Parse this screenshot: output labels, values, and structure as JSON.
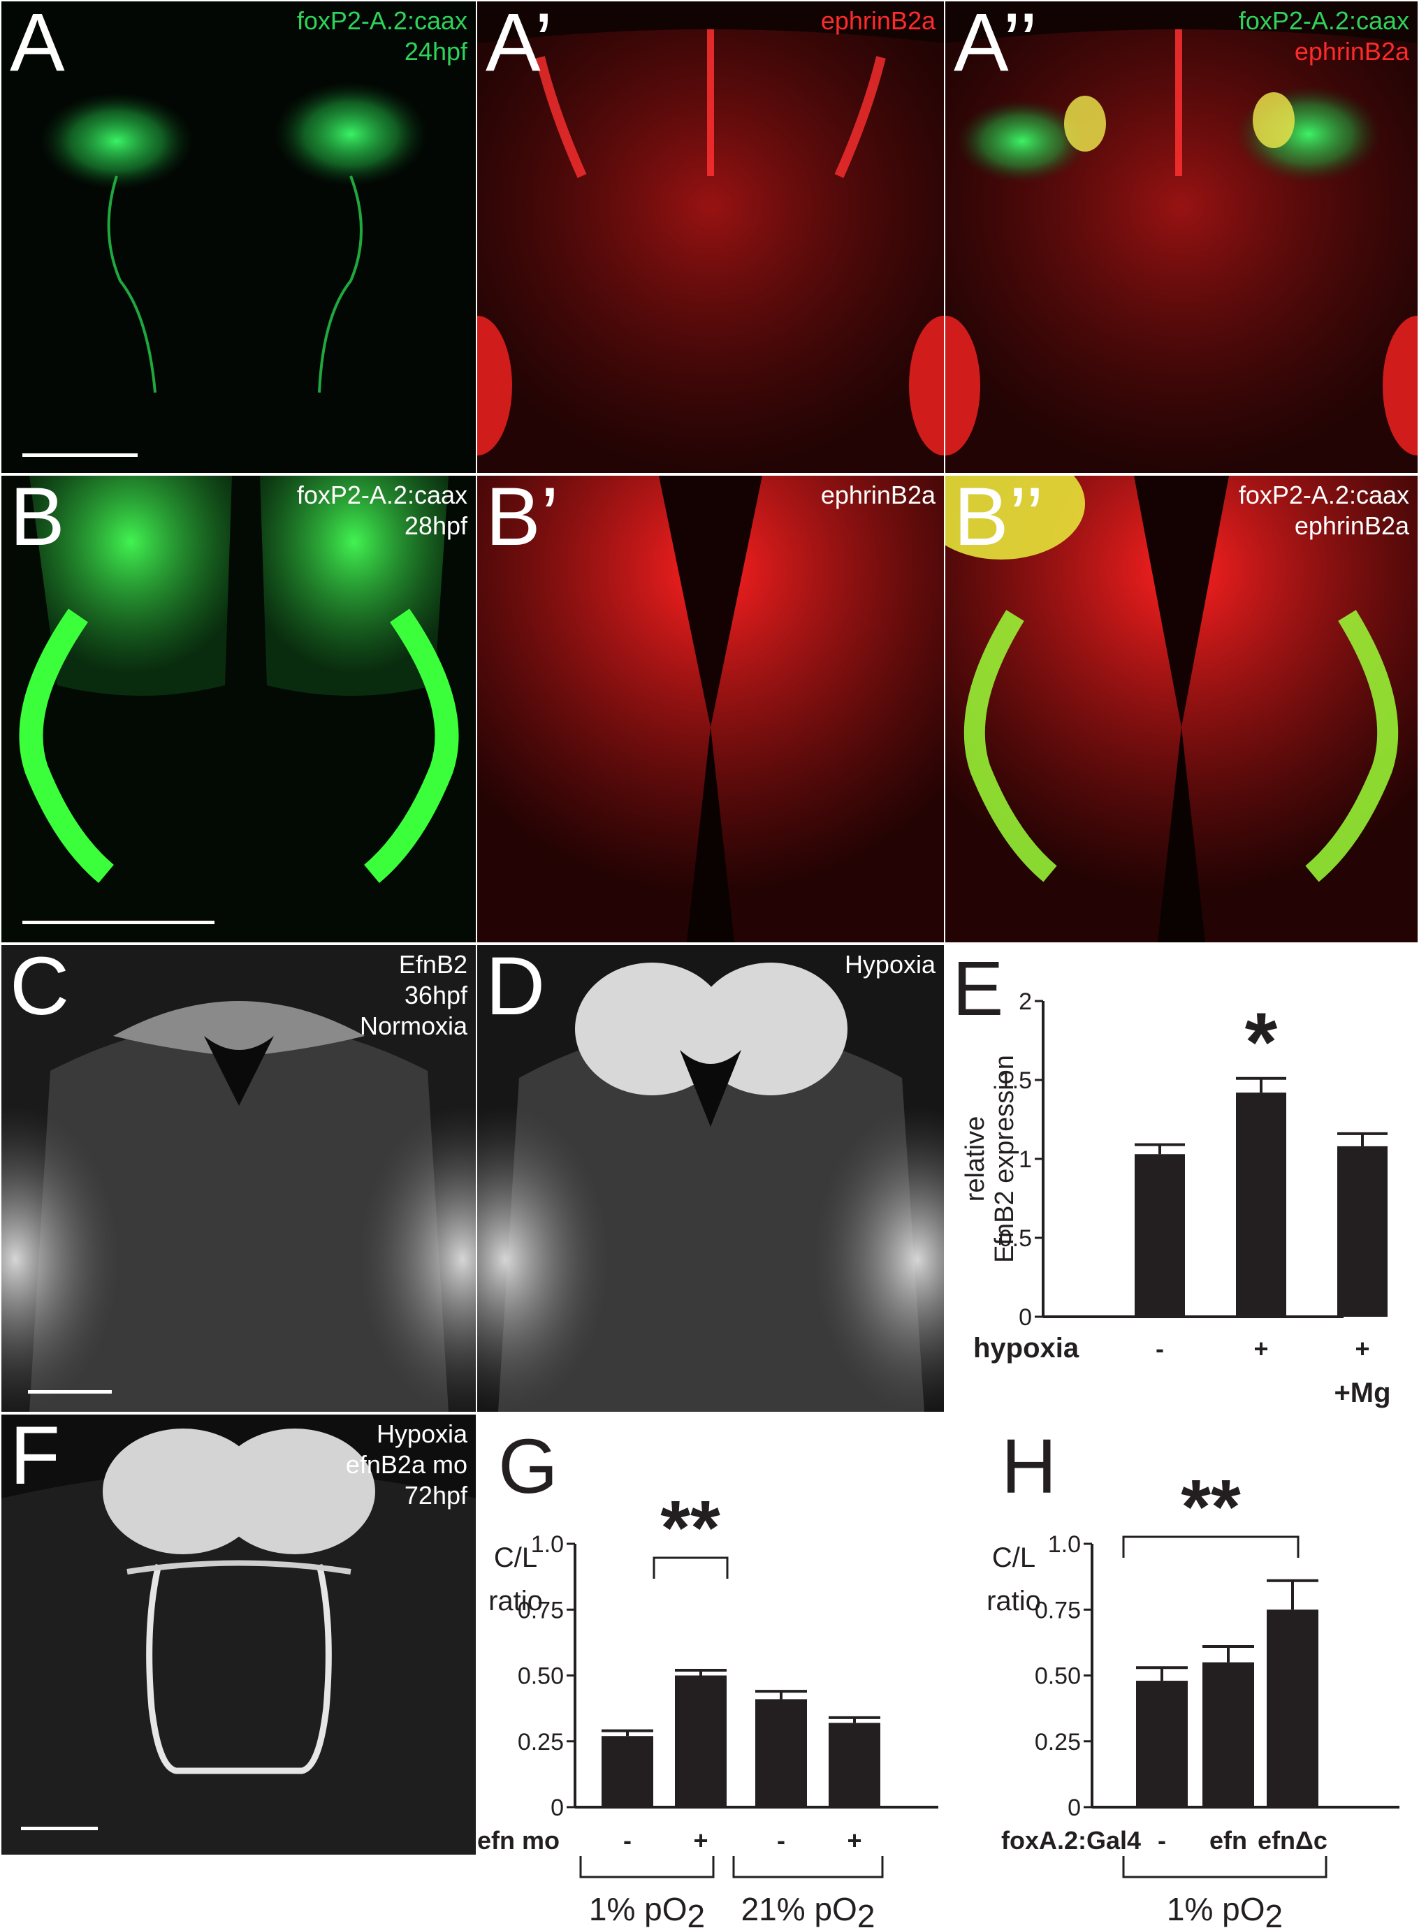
{
  "panels": {
    "A": {
      "letter": "A",
      "lines": [
        "foxP2-A.2:caax",
        "24hpf"
      ]
    },
    "A1": {
      "letter": "A’",
      "lines": [
        "ephrinB2a"
      ]
    },
    "A2": {
      "letter": "A’’",
      "lines": [
        "foxP2-A.2:caax",
        "ephrinB2a"
      ]
    },
    "B": {
      "letter": "B",
      "lines": [
        "foxP2-A.2:caax",
        "28hpf"
      ]
    },
    "B1": {
      "letter": "B’",
      "lines": [
        "ephrinB2a"
      ]
    },
    "B2": {
      "letter": "B’’",
      "lines": [
        "foxP2-A.2:caax",
        "ephrinB2a"
      ]
    },
    "C": {
      "letter": "C",
      "lines": [
        "EfnB2",
        "36hpf",
        "Normoxia"
      ]
    },
    "D": {
      "letter": "D",
      "lines": [
        "Hypoxia"
      ]
    },
    "F": {
      "letter": "F",
      "lines": [
        "Hypoxia",
        "efnB2a mo",
        "72hpf"
      ]
    }
  },
  "colors": {
    "green": "#2fd35a",
    "red": "#ff2a2a",
    "white": "#ffffff",
    "bar": "#231f20"
  },
  "chart_data": [
    {
      "panel": "E",
      "type": "bar",
      "ylabel": [
        "relative",
        "EfnB2 expression"
      ],
      "yticks": [
        "0",
        "0.5",
        "1",
        "1.5",
        "2"
      ],
      "ylim": [
        0,
        2
      ],
      "row_label": "hypoxia",
      "categories": [
        "-",
        "+",
        "+"
      ],
      "sub_labels": [
        "",
        "",
        "+Mg"
      ],
      "values": [
        1.03,
        1.42,
        1.08
      ],
      "errors": [
        0.06,
        0.09,
        0.08
      ],
      "significance": "*"
    },
    {
      "panel": "G",
      "type": "bar",
      "ylabel": [
        "C/L",
        "ratio"
      ],
      "yticks": [
        "0",
        "0.25",
        "0.50",
        "0.75",
        "1.0"
      ],
      "ylim": [
        0,
        1
      ],
      "row_label": "efn mo",
      "categories": [
        "-",
        "+",
        "-",
        "+"
      ],
      "values": [
        0.27,
        0.5,
        0.41,
        0.32
      ],
      "errors": [
        0.02,
        0.02,
        0.03,
        0.02
      ],
      "groups": [
        {
          "label": "1% pO",
          "sub": "2"
        },
        {
          "label": "21% pO",
          "sub": "2"
        }
      ],
      "significance": "**"
    },
    {
      "panel": "H",
      "type": "bar",
      "ylabel": [
        "C/L",
        "ratio"
      ],
      "yticks": [
        "0",
        "0.25",
        "0.50",
        "0.75",
        "1.0"
      ],
      "ylim": [
        0,
        1
      ],
      "row_label": "foxA.2:Gal4",
      "categories": [
        "-",
        "efn",
        "efnΔc"
      ],
      "values": [
        0.48,
        0.55,
        0.75
      ],
      "errors": [
        0.05,
        0.06,
        0.11
      ],
      "groups": [
        {
          "label": "1% pO",
          "sub": "2"
        }
      ],
      "significance": "**"
    }
  ]
}
